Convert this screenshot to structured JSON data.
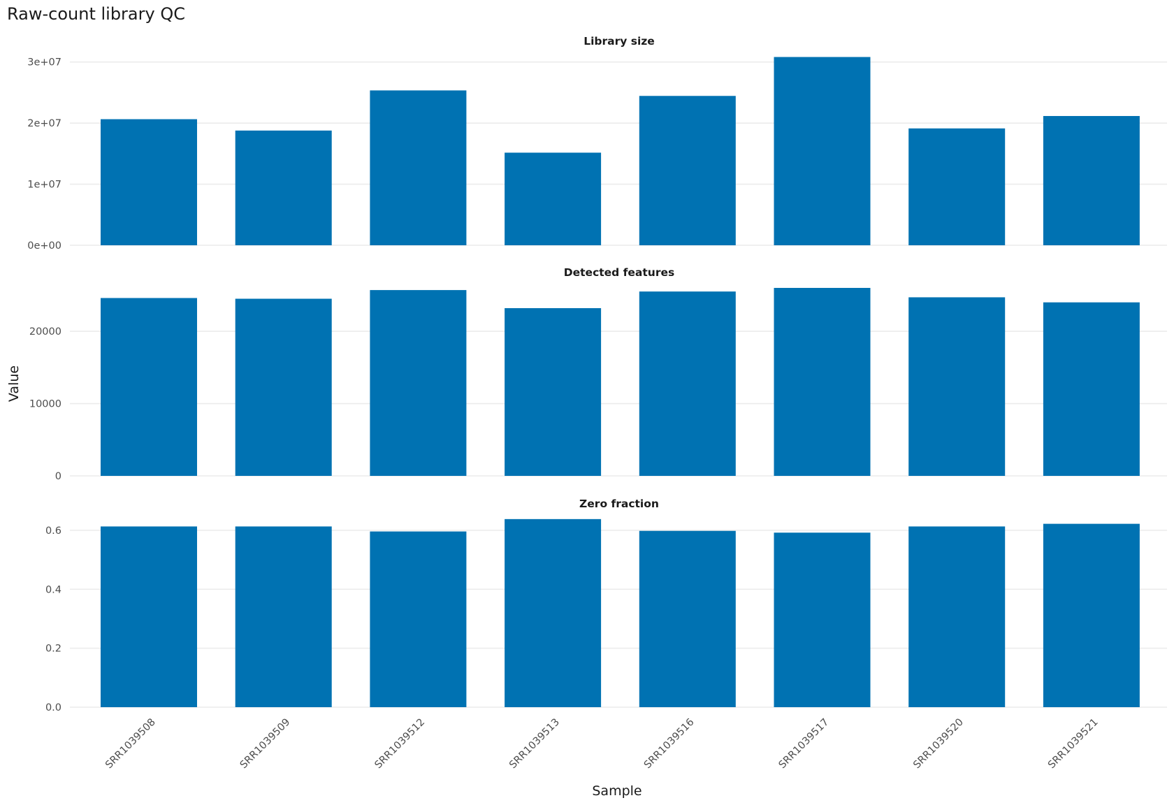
{
  "chart_data": {
    "type": "bar",
    "title": "Raw-count library QC",
    "xlabel": "Sample",
    "ylabel": "Value",
    "grid": true,
    "bar_color": "#0072b2",
    "categories": [
      "SRR1039508",
      "SRR1039509",
      "SRR1039512",
      "SRR1039513",
      "SRR1039516",
      "SRR1039517",
      "SRR1039520",
      "SRR1039521"
    ],
    "panels": [
      {
        "name": "Library size",
        "ylim": [
          0,
          31000000
        ],
        "ticks": [
          0,
          10000000,
          20000000,
          30000000
        ],
        "tick_labels": [
          "0e+00",
          "1e+07",
          "2e+07",
          "3e+07"
        ],
        "values": [
          20640000,
          18780000,
          25350000,
          15160000,
          24450000,
          30820000,
          19130000,
          21160000
        ]
      },
      {
        "name": "Detected features",
        "ylim": [
          0,
          26000
        ],
        "ticks": [
          0,
          10000,
          20000
        ],
        "tick_labels": [
          "0",
          "10000",
          "20000"
        ],
        "values": [
          24600,
          24500,
          25700,
          23200,
          25500,
          26000,
          24700,
          24000
        ]
      },
      {
        "name": "Zero fraction",
        "ylim": [
          0,
          0.64
        ],
        "ticks": [
          0,
          0.2,
          0.4,
          0.6
        ],
        "tick_labels": [
          "0.0",
          "0.2",
          "0.4",
          "0.6"
        ],
        "values": [
          0.613,
          0.613,
          0.596,
          0.638,
          0.598,
          0.592,
          0.613,
          0.622
        ]
      }
    ]
  }
}
